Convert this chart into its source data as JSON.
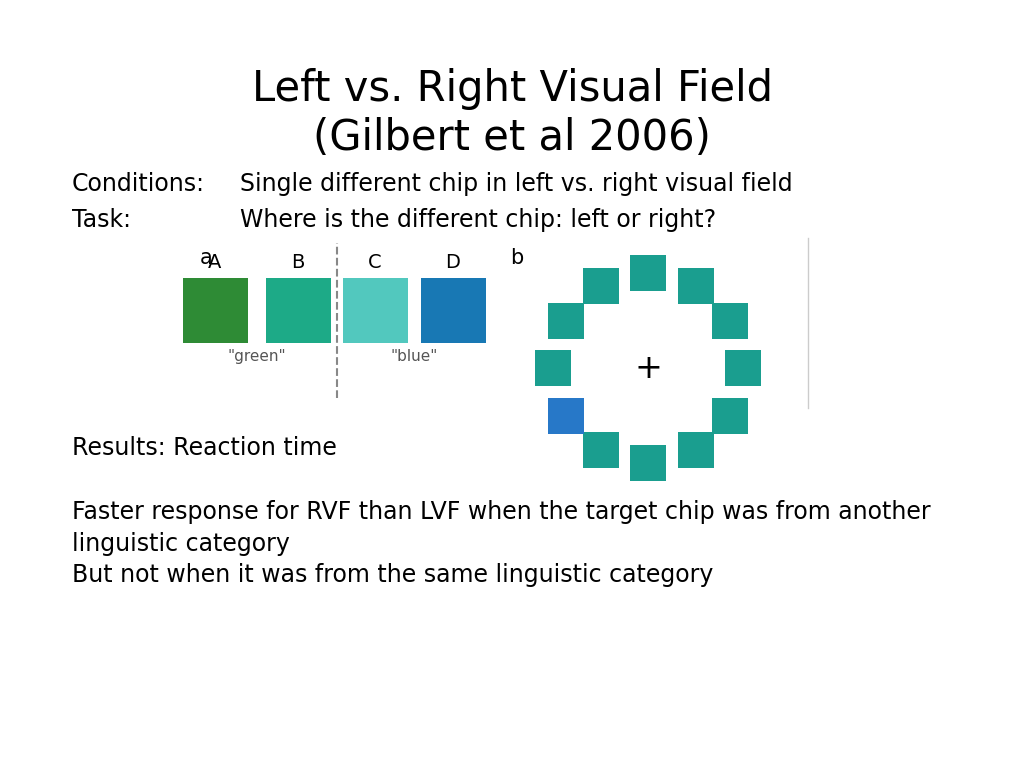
{
  "title": "Left vs. Right Visual Field\n(Gilbert et al 2006)",
  "title_fontsize": 30,
  "conditions_label": "Conditions:",
  "conditions_text": "Single different chip in left vs. right visual field",
  "task_label": "Task:",
  "task_text": "Where is the different chip: left or right?",
  "label_fontsize": 17,
  "text_fontsize": 17,
  "results_text": "Results: Reaction time",
  "conclusion_text": "Faster response for RVF than LVF when the target chip was from another\nlinguistic category\nBut not when it was from the same linguistic category",
  "panel_a_label": "a",
  "panel_b_label": "b",
  "square_colors": [
    "#2e8b35",
    "#1daa87",
    "#52c8be",
    "#1878b4"
  ],
  "square_labels": [
    "A",
    "B",
    "C",
    "D"
  ],
  "green_label": "\"green\"",
  "blue_label": "\"blue\"",
  "teal_color": "#1a9e8f",
  "blue_chip_color": "#2778c8",
  "plus_symbol": "+",
  "num_circle_chips": 12,
  "odd_chip_index": 8
}
